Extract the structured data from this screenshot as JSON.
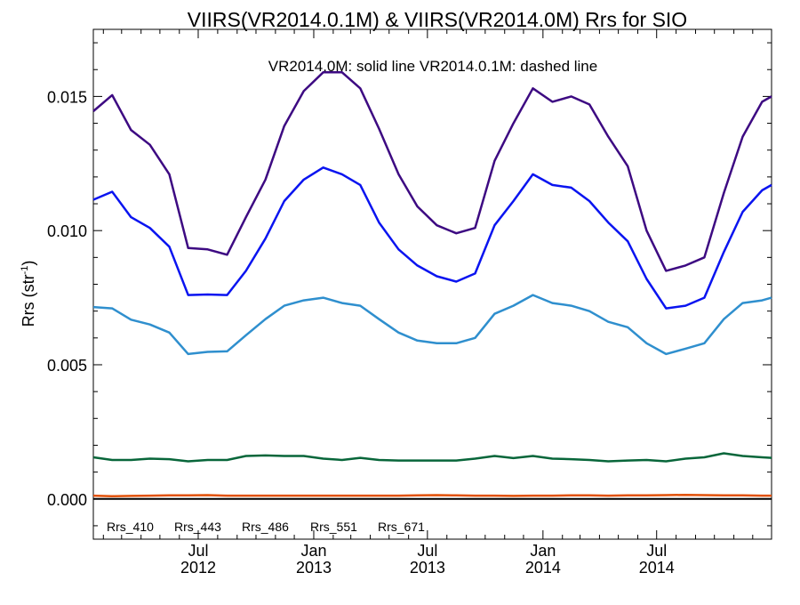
{
  "chart_data": {
    "type": "line",
    "title": "VIIRS(VR2014.0.1M) & VIIRS(VR2014.0M)  Rrs for SIO",
    "annotation": "VR2014.0M: solid line   VR2014.0.1M: dashed line",
    "ylabel": {
      "base": "Rrs (str",
      "sup": "-1",
      "close": ")"
    },
    "ylim": [
      -0.0015,
      0.0175
    ],
    "yticks": [
      {
        "value": 0.0,
        "label": "0.000"
      },
      {
        "value": 0.005,
        "label": "0.005"
      },
      {
        "value": 0.01,
        "label": "0.010"
      },
      {
        "value": 0.015,
        "label": "0.015"
      }
    ],
    "xlim": [
      "2012-01-16",
      "2014-12-31"
    ],
    "xticks": [
      {
        "date": "2012-07-01",
        "label": "Jul",
        "year": "2012"
      },
      {
        "date": "2013-01-01",
        "label": "Jan",
        "year": "2013"
      },
      {
        "date": "2013-07-01",
        "label": "Jul",
        "year": "2013"
      },
      {
        "date": "2014-01-01",
        "label": "Jan",
        "year": "2014"
      },
      {
        "date": "2014-07-01",
        "label": "Jul",
        "year": "2014"
      }
    ],
    "dates": [
      "2012-01-16",
      "2012-02-15",
      "2012-03-16",
      "2012-04-15",
      "2012-05-16",
      "2012-06-15",
      "2012-07-16",
      "2012-08-16",
      "2012-09-15",
      "2012-10-16",
      "2012-11-15",
      "2012-12-16",
      "2013-01-16",
      "2013-02-15",
      "2013-03-16",
      "2013-04-15",
      "2013-05-16",
      "2013-06-15",
      "2013-07-16",
      "2013-08-16",
      "2013-09-15",
      "2013-10-16",
      "2013-11-15",
      "2013-12-16",
      "2014-01-16",
      "2014-02-15",
      "2014-03-16",
      "2014-04-15",
      "2014-05-16",
      "2014-06-15",
      "2014-07-16",
      "2014-08-16",
      "2014-09-15",
      "2014-10-16",
      "2014-11-15",
      "2014-12-16",
      "2014-12-31"
    ],
    "series": [
      {
        "name": "Rrs_410",
        "color": "#3d0a82",
        "values": [
          0.01445,
          0.01505,
          0.01375,
          0.0132,
          0.0121,
          0.00935,
          0.0093,
          0.0091,
          0.0105,
          0.0119,
          0.0139,
          0.0152,
          0.0159,
          0.0159,
          0.0153,
          0.0138,
          0.0121,
          0.0109,
          0.0102,
          0.0099,
          0.0101,
          0.0126,
          0.014,
          0.0153,
          0.0148,
          0.015,
          0.0147,
          0.0135,
          0.0124,
          0.01,
          0.0085,
          0.0087,
          0.009,
          0.0114,
          0.0135,
          0.0148,
          0.015
        ]
      },
      {
        "name": "Rrs_443",
        "color": "#0a14f0",
        "values": [
          0.01115,
          0.01145,
          0.0105,
          0.0101,
          0.0094,
          0.0076,
          0.00762,
          0.0076,
          0.0085,
          0.0097,
          0.0111,
          0.0119,
          0.01235,
          0.0121,
          0.0117,
          0.0103,
          0.0093,
          0.0087,
          0.0083,
          0.0081,
          0.0084,
          0.0102,
          0.0111,
          0.0121,
          0.0117,
          0.0116,
          0.0111,
          0.0103,
          0.0096,
          0.0082,
          0.0071,
          0.0072,
          0.0075,
          0.0092,
          0.0107,
          0.0115,
          0.0117
        ]
      },
      {
        "name": "Rrs_486",
        "color": "#2f8fce",
        "values": [
          0.00715,
          0.0071,
          0.00668,
          0.0065,
          0.0062,
          0.0054,
          0.00548,
          0.0055,
          0.0061,
          0.0067,
          0.0072,
          0.0074,
          0.0075,
          0.0073,
          0.0072,
          0.0067,
          0.0062,
          0.0059,
          0.0058,
          0.0058,
          0.006,
          0.0069,
          0.0072,
          0.0076,
          0.0073,
          0.0072,
          0.007,
          0.0066,
          0.0064,
          0.0058,
          0.0054,
          0.0056,
          0.0058,
          0.0067,
          0.0073,
          0.0074,
          0.0075
        ]
      },
      {
        "name": "Rrs_551",
        "color": "#08663a",
        "values": [
          0.00155,
          0.00145,
          0.00145,
          0.0015,
          0.00148,
          0.0014,
          0.00145,
          0.00145,
          0.0016,
          0.00162,
          0.0016,
          0.0016,
          0.0015,
          0.00145,
          0.00153,
          0.00145,
          0.00143,
          0.00143,
          0.00143,
          0.00143,
          0.0015,
          0.0016,
          0.00152,
          0.0016,
          0.0015,
          0.00148,
          0.00145,
          0.0014,
          0.00143,
          0.00145,
          0.0014,
          0.0015,
          0.00155,
          0.0017,
          0.0016,
          0.00155,
          0.00153
        ]
      },
      {
        "name": "Rrs_671",
        "color": "#e2520a",
        "values": [
          0.00012,
          0.0001,
          0.00011,
          0.00012,
          0.00013,
          0.00013,
          0.00014,
          0.00012,
          0.00012,
          0.00012,
          0.00012,
          0.00012,
          0.00012,
          0.00012,
          0.00012,
          0.00012,
          0.00012,
          0.00013,
          0.00014,
          0.00013,
          0.00012,
          0.00012,
          0.00011,
          0.00012,
          0.00012,
          0.00013,
          0.00013,
          0.00012,
          0.00013,
          0.00013,
          0.00014,
          0.00015,
          0.00014,
          0.00013,
          0.00013,
          0.00012,
          0.00012
        ]
      }
    ],
    "baseline": {
      "value": 0.0,
      "color": "#000000"
    },
    "grid": false,
    "legend_position": "bottom-left"
  }
}
